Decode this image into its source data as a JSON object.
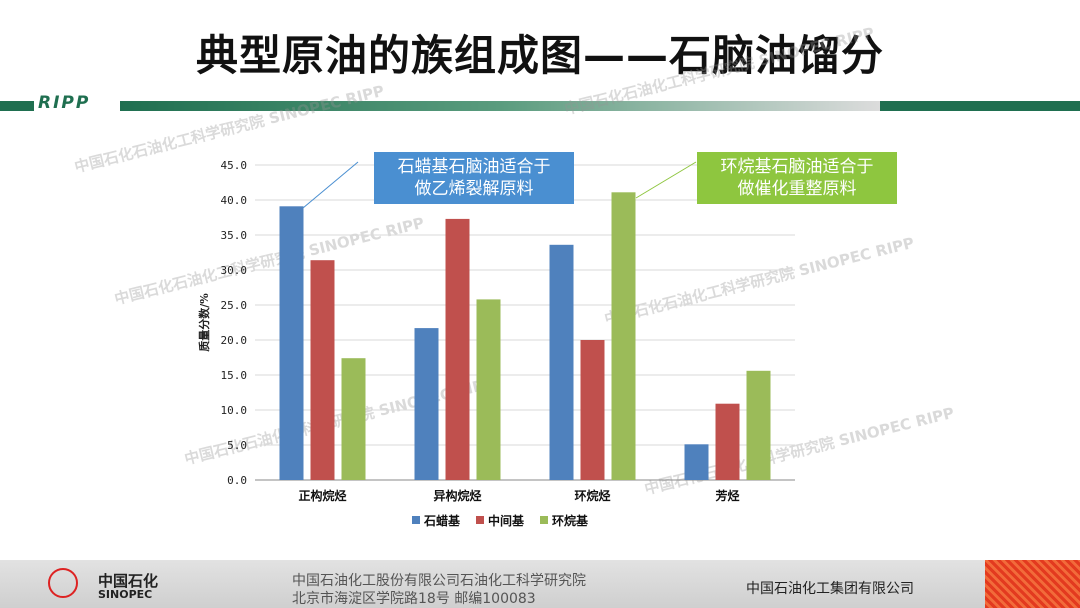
{
  "slide": {
    "title": "典型原油的族组成图——石脑油馏分",
    "logo": "RIPP",
    "watermarks": [
      "中国石化石油化工科学研究院 SINOPEC RIPP",
      "中国石化石油化工科学研究院 SINOPEC RIPP",
      "中国石化石油化工科学研究院 SINOPEC RIPP",
      "中国石化石油化工科学研究院 SINOPEC RIPP",
      "中国石化石油化工科学研究院 SINOPEC RIPP",
      "中国石化石油化工科学研究院 SINOPEC RIPP"
    ]
  },
  "callouts": {
    "left": [
      "石蜡基石脑油适合于",
      "做乙烯裂解原料"
    ],
    "right": [
      "环烷基石脑油适合于",
      "做催化重整原料"
    ]
  },
  "chart_data": {
    "type": "bar",
    "categories": [
      "正构烷烃",
      "异构烷烃",
      "环烷烃",
      "芳烃"
    ],
    "series": [
      {
        "name": "石蜡基",
        "values": [
          39.1,
          21.7,
          33.6,
          5.1
        ],
        "color": "#4f81bd"
      },
      {
        "name": "中间基",
        "values": [
          31.4,
          37.3,
          20.0,
          10.9
        ],
        "color": "#c0504d"
      },
      {
        "name": "环烷基",
        "values": [
          17.4,
          25.8,
          41.1,
          15.6
        ],
        "color": "#9bbb59"
      }
    ],
    "ylabel": "质量分数/%",
    "ylim": [
      0,
      45
    ],
    "yticks": [
      "0.0",
      "5.0",
      "10.0",
      "15.0",
      "20.0",
      "25.0",
      "30.0",
      "35.0",
      "40.0",
      "45.0"
    ],
    "grid": true,
    "legend": "bottom"
  },
  "footer": {
    "logo_cn": "中国石化",
    "logo_en": "SINOPEC",
    "line1": "中国石油化工股份有限公司石油化工科学研究院",
    "line2": "北京市海淀区学院路18号  邮编100083",
    "right": "中国石油化工集团有限公司"
  },
  "colors": {
    "accent_green": "#1f6f50",
    "callout_blue": "#4a8fd1",
    "callout_green": "#8ec63f"
  }
}
